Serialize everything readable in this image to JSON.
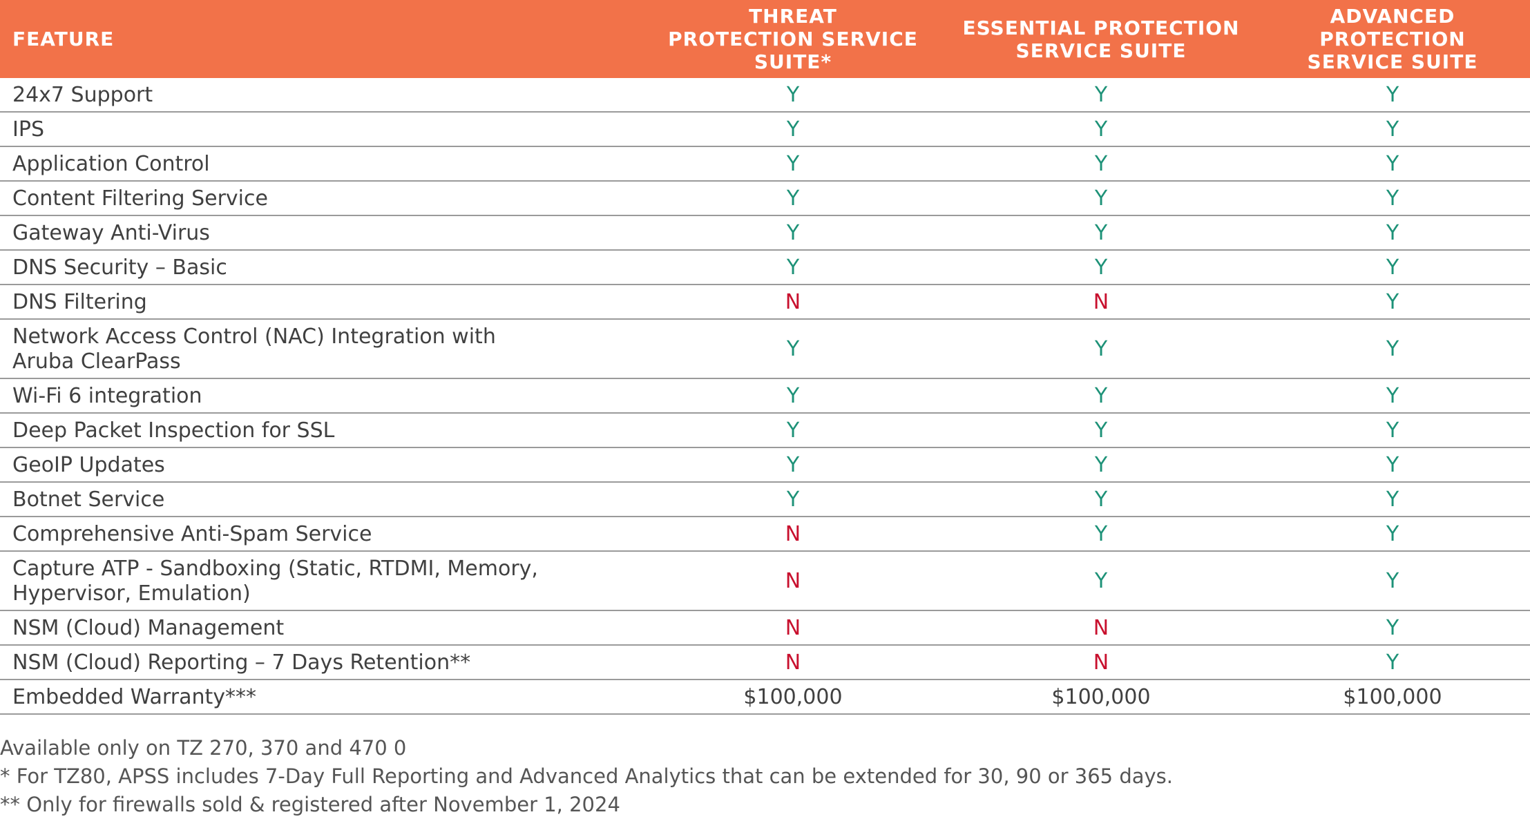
{
  "header": {
    "feature": "FEATURE",
    "threat": [
      "THREAT",
      "PROTECTION SERVICE",
      "SUITE*"
    ],
    "essential": [
      "ESSENTIAL PROTECTION",
      "SERVICE SUITE"
    ],
    "advanced": [
      "ADVANCED PROTECTION",
      "SERVICE SUITE"
    ]
  },
  "rows": [
    {
      "feature": [
        "24x7 Support"
      ],
      "values": [
        "Y",
        "Y",
        "Y"
      ]
    },
    {
      "feature": [
        "IPS"
      ],
      "values": [
        "Y",
        "Y",
        "Y"
      ]
    },
    {
      "feature": [
        "Application Control"
      ],
      "values": [
        "Y",
        "Y",
        "Y"
      ]
    },
    {
      "feature": [
        "Content Filtering Service"
      ],
      "values": [
        "Y",
        "Y",
        "Y"
      ]
    },
    {
      "feature": [
        "Gateway Anti-Virus"
      ],
      "values": [
        "Y",
        "Y",
        "Y"
      ]
    },
    {
      "feature": [
        "DNS Security – Basic"
      ],
      "values": [
        "Y",
        "Y",
        "Y"
      ]
    },
    {
      "feature": [
        "DNS Filtering"
      ],
      "values": [
        "N",
        "N",
        "Y"
      ]
    },
    {
      "feature": [
        "Network Access Control (NAC) Integration with",
        "Aruba ClearPass"
      ],
      "values": [
        "Y",
        "Y",
        "Y"
      ]
    },
    {
      "feature": [
        "Wi-Fi 6 integration"
      ],
      "values": [
        "Y",
        "Y",
        "Y"
      ]
    },
    {
      "feature": [
        "Deep Packet Inspection for SSL"
      ],
      "values": [
        "Y",
        "Y",
        "Y"
      ]
    },
    {
      "feature": [
        "GeoIP Updates"
      ],
      "values": [
        "Y",
        "Y",
        "Y"
      ]
    },
    {
      "feature": [
        "Botnet Service"
      ],
      "values": [
        "Y",
        "Y",
        "Y"
      ]
    },
    {
      "feature": [
        "Comprehensive Anti-Spam Service"
      ],
      "values": [
        "N",
        "Y",
        "Y"
      ]
    },
    {
      "feature": [
        "Capture ATP -  Sandboxing (Static, RTDMI, Memory,",
        "Hypervisor, Emulation)"
      ],
      "values": [
        "N",
        "Y",
        "Y"
      ]
    },
    {
      "feature": [
        "NSM (Cloud) Management"
      ],
      "values": [
        "N",
        "N",
        "Y"
      ]
    },
    {
      "feature": [
        "NSM (Cloud) Reporting – 7 Days Retention**"
      ],
      "values": [
        "N",
        "N",
        "Y"
      ]
    },
    {
      "feature": [
        "Embedded Warranty***"
      ],
      "values": [
        "$100,000",
        "$100,000",
        "$100,000"
      ]
    }
  ],
  "footnotes": [
    " Available only on TZ 270, 370 and 470 0",
    "* For TZ80, APSS includes 7-Day Full Reporting and Advanced Analytics that can be extended for 30, 90 or 365 days.",
    "** Only for firewalls sold & registered after November 1, 2024"
  ],
  "colors": {
    "header_bg": "#f27249",
    "yes": "#1e9278",
    "no": "#c8102e"
  }
}
